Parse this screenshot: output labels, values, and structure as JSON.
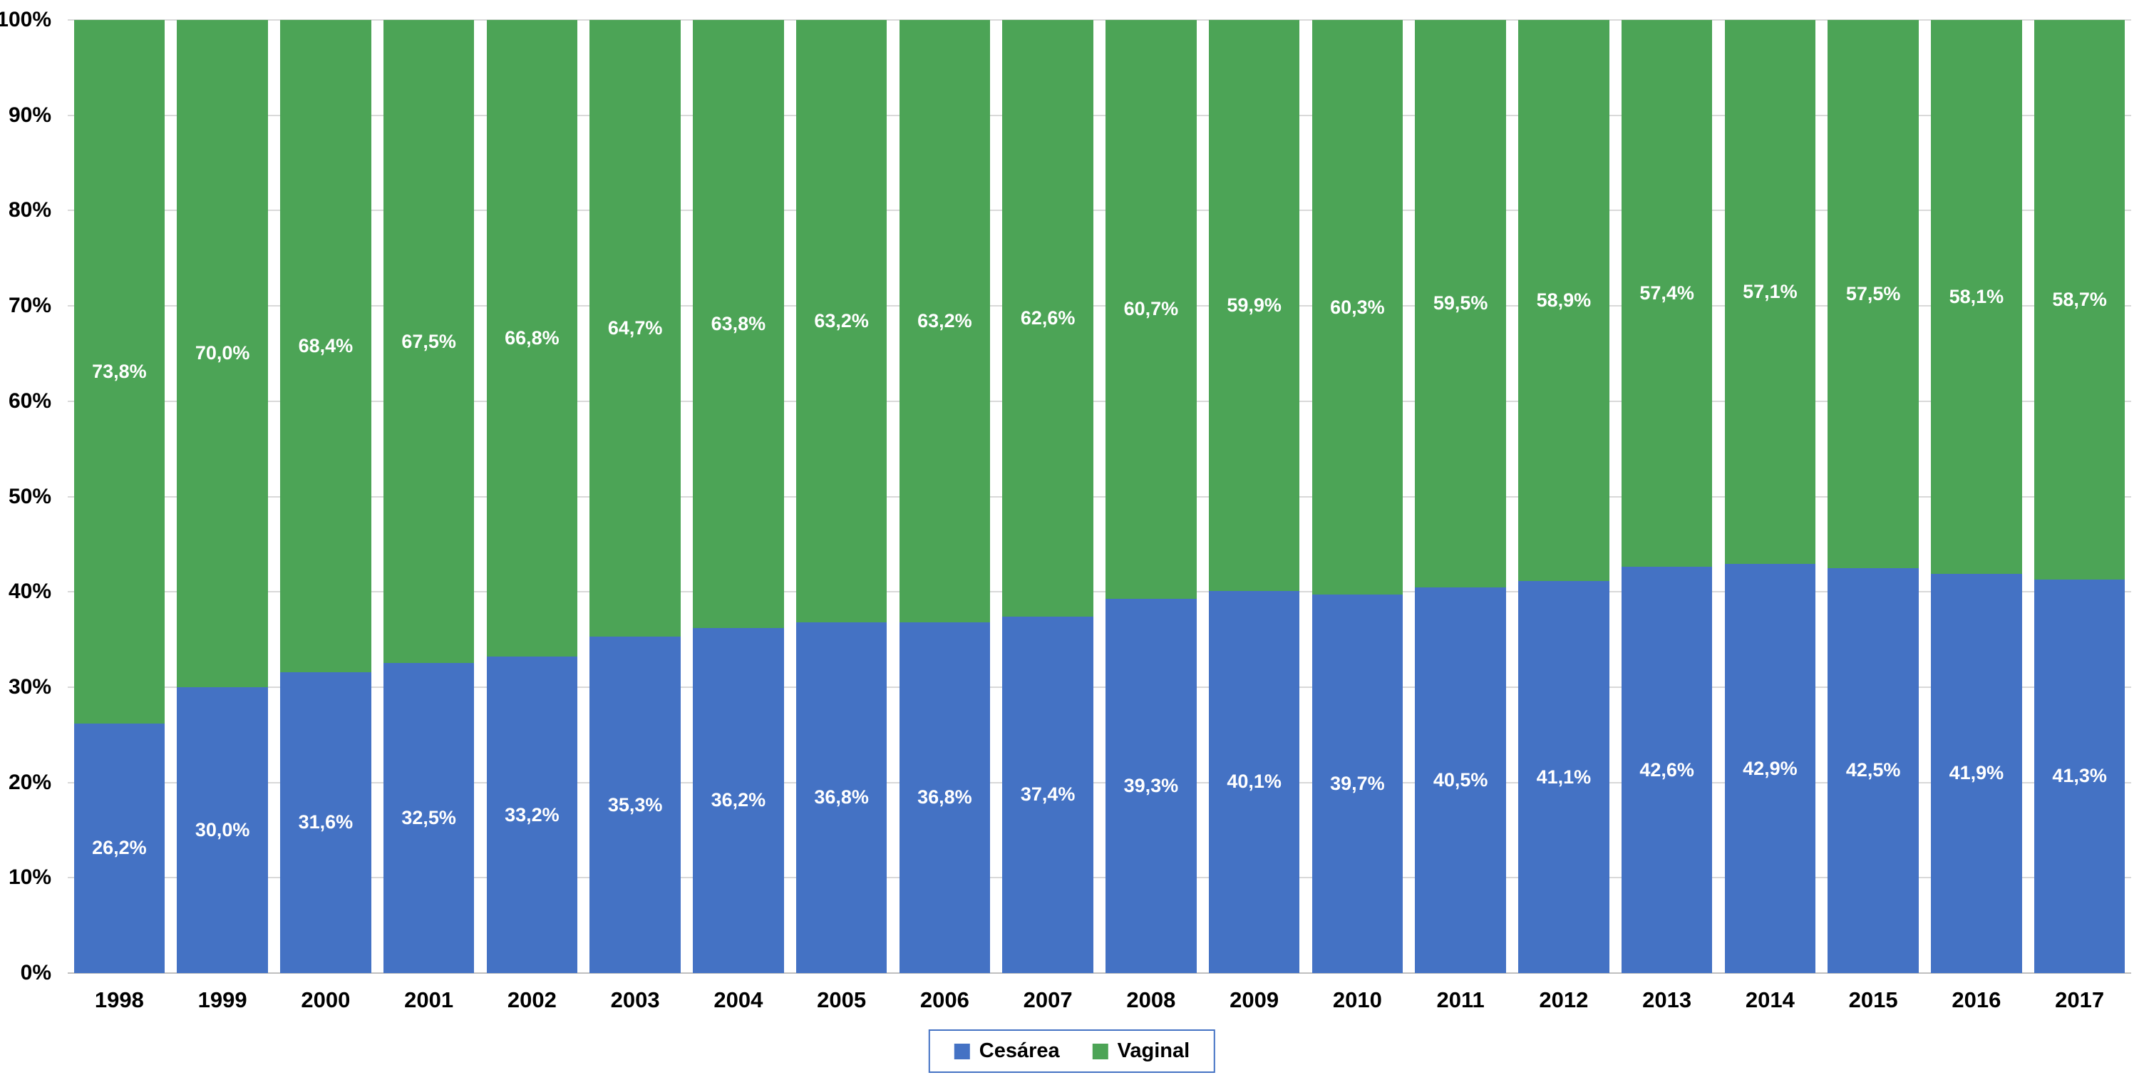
{
  "chart_data": {
    "type": "bar",
    "stacked": true,
    "percent_stacked": true,
    "title": "",
    "xlabel": "",
    "ylabel": "",
    "grid": true,
    "categories": [
      "1998",
      "1999",
      "2000",
      "2001",
      "2002",
      "2003",
      "2004",
      "2005",
      "2006",
      "2007",
      "2008",
      "2009",
      "2010",
      "2011",
      "2012",
      "2013",
      "2014",
      "2015",
      "2016",
      "2017"
    ],
    "series": [
      {
        "name": "Cesárea",
        "color": "#4472c4",
        "values": [
          26.2,
          30.0,
          31.6,
          32.5,
          33.2,
          35.3,
          36.2,
          36.8,
          36.8,
          37.4,
          39.3,
          40.1,
          39.7,
          40.5,
          41.1,
          42.6,
          42.9,
          42.5,
          41.9,
          41.3
        ],
        "labels": [
          "26,2%",
          "30,0%",
          "31,6%",
          "32,5%",
          "33,2%",
          "35,3%",
          "36,2%",
          "36,8%",
          "36,8%",
          "37,4%",
          "39,3%",
          "40,1%",
          "39,7%",
          "40,5%",
          "41,1%",
          "42,6%",
          "42,9%",
          "42,5%",
          "41,9%",
          "41,3%"
        ]
      },
      {
        "name": "Vaginal",
        "color": "#4ca456",
        "values": [
          73.8,
          70.0,
          68.4,
          67.5,
          66.8,
          64.7,
          63.8,
          63.2,
          63.2,
          62.6,
          60.7,
          59.9,
          60.3,
          59.5,
          58.9,
          57.4,
          57.1,
          57.5,
          58.1,
          58.7
        ],
        "labels": [
          "73,8%",
          "70,0%",
          "68,4%",
          "67,5%",
          "66,8%",
          "64,7%",
          "63,8%",
          "63,2%",
          "63,2%",
          "62,6%",
          "60,7%",
          "59,9%",
          "60,3%",
          "59,5%",
          "58,9%",
          "57,4%",
          "57,1%",
          "57,5%",
          "58,1%",
          "58,7%"
        ]
      }
    ],
    "y_axis": {
      "min": 0,
      "max": 100,
      "step": 10,
      "tick_labels": [
        "0%",
        "10%",
        "20%",
        "30%",
        "40%",
        "50%",
        "60%",
        "70%",
        "80%",
        "90%",
        "100%"
      ]
    },
    "legend": {
      "position": "bottom",
      "items": [
        "Cesárea",
        "Vaginal"
      ]
    }
  }
}
